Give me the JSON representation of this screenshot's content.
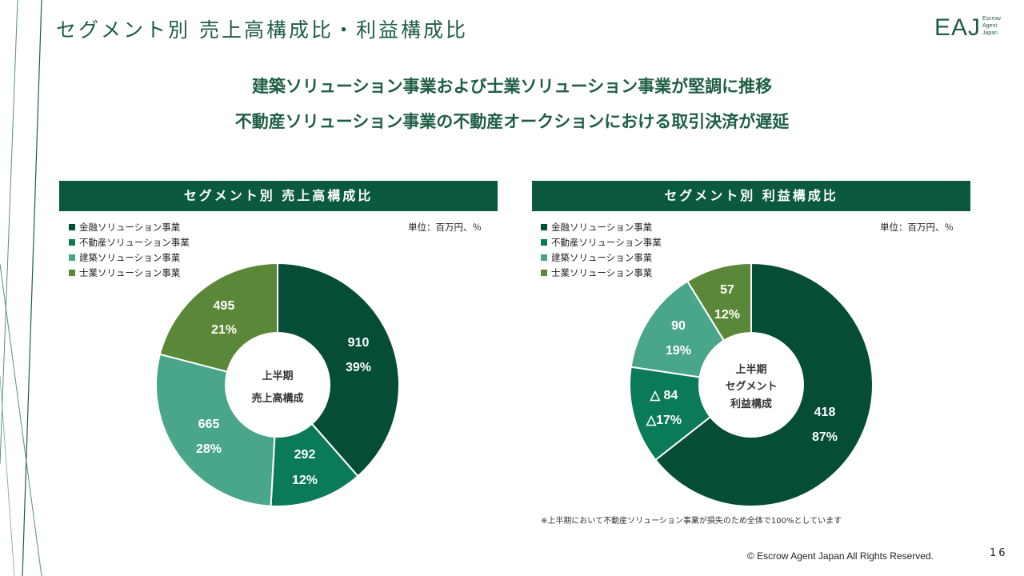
{
  "title": "セグメント別 売上高構成比・利益構成比",
  "logo": {
    "main": "EAJ",
    "sub": [
      "Escrow",
      "Agent",
      "Japan"
    ]
  },
  "headline": {
    "line1": "建築ソリューション事業および士業ソリューション事業が堅調に推移",
    "line2": "不動産ソリューション事業の不動産オークションにおける取引決済が遅延"
  },
  "colors": {
    "financial": "#064d37",
    "realestate": "#0b7a58",
    "construction": "#4aa68a",
    "legal": "#5b8838",
    "header_bg": "#0b5a3f"
  },
  "legend": [
    "金融ソリューション事業",
    "不動産ソリューション事業",
    "建築ソリューション事業",
    "士業ソリューション事業"
  ],
  "sales_panel": {
    "header": "セグメント別 売上高構成比",
    "unit": "単位：百万円、％",
    "center_lines": [
      "上半期",
      "売上高構成"
    ]
  },
  "profit_panel": {
    "header": "セグメント別 利益構成比",
    "unit": "単位：百万円、％",
    "center_lines": [
      "上半期",
      "セグメント",
      "利益構成"
    ],
    "note": "※上半期において不動産ソリューション事業が損失のため全体で100%としています"
  },
  "chart_data": [
    {
      "type": "pie",
      "title": "セグメント別 売上高構成比",
      "categories": [
        "金融ソリューション事業",
        "不動産ソリューション事業",
        "建築ソリューション事業",
        "士業ソリューション事業"
      ],
      "values": [
        910,
        292,
        665,
        495
      ],
      "value_labels": [
        "910",
        "292",
        "665",
        "495"
      ],
      "percent_labels": [
        "39%",
        "12%",
        "28%",
        "21%"
      ],
      "unit": "百万円"
    },
    {
      "type": "pie",
      "title": "セグメント別 利益構成比",
      "categories": [
        "金融ソリューション事業",
        "不動産ソリューション事業",
        "建築ソリューション事業",
        "士業ソリューション事業"
      ],
      "values": [
        418,
        -84,
        90,
        57
      ],
      "value_labels": [
        "418",
        "△ 84",
        "90",
        "57"
      ],
      "percent_labels": [
        "87%",
        "△17%",
        "19%",
        "12%"
      ],
      "unit": "百万円"
    }
  ],
  "footer": {
    "copyright": "© Escrow Agent Japan All Rights Reserved.",
    "page": "16"
  }
}
